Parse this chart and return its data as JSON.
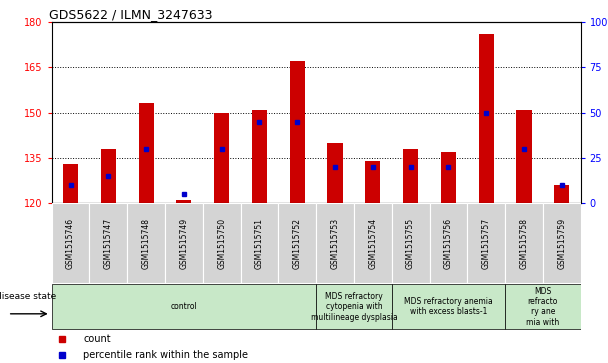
{
  "title": "GDS5622 / ILMN_3247633",
  "samples": [
    "GSM1515746",
    "GSM1515747",
    "GSM1515748",
    "GSM1515749",
    "GSM1515750",
    "GSM1515751",
    "GSM1515752",
    "GSM1515753",
    "GSM1515754",
    "GSM1515755",
    "GSM1515756",
    "GSM1515757",
    "GSM1515758",
    "GSM1515759"
  ],
  "counts": [
    133,
    138,
    153,
    121,
    150,
    151,
    167,
    140,
    134,
    138,
    137,
    176,
    151,
    126
  ],
  "percentile_ranks": [
    10,
    15,
    30,
    5,
    30,
    45,
    45,
    20,
    20,
    20,
    20,
    50,
    30,
    10
  ],
  "ylim_left": [
    120,
    180
  ],
  "ylim_right": [
    0,
    100
  ],
  "yticks_left": [
    120,
    135,
    150,
    165,
    180
  ],
  "yticks_right": [
    0,
    25,
    50,
    75,
    100
  ],
  "bar_color": "#cc0000",
  "dot_color": "#0000cc",
  "bar_width": 0.4,
  "plot_bg_color": "#ffffff",
  "sample_cell_color": "#d4d4d4",
  "disease_groups": [
    {
      "label": "control",
      "start": 0,
      "end": 7
    },
    {
      "label": "MDS refractory\ncytopenia with\nmultilineage dysplasia",
      "start": 7,
      "end": 9
    },
    {
      "label": "MDS refractory anemia\nwith excess blasts-1",
      "start": 9,
      "end": 12
    },
    {
      "label": "MDS\nrefracto\nry ane\nmia with",
      "start": 12,
      "end": 14
    }
  ],
  "legend_items": [
    {
      "label": "count",
      "color": "#cc0000"
    },
    {
      "label": "percentile rank within the sample",
      "color": "#0000cc"
    }
  ]
}
